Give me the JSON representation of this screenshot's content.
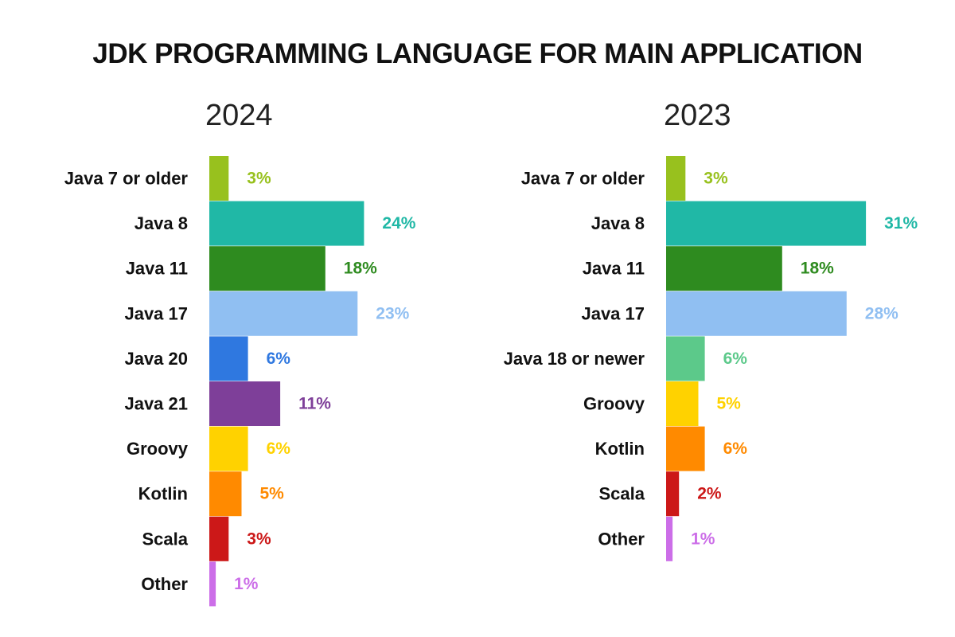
{
  "title": "JDK PROGRAMMING LANGUAGE FOR MAIN APPLICATION",
  "chart_data": [
    {
      "type": "bar",
      "orientation": "horizontal",
      "title": "2024",
      "categories": [
        "Java 7 or older",
        "Java 8",
        "Java 11",
        "Java 17",
        "Java 20",
        "Java 21",
        "Groovy",
        "Kotlin",
        "Scala",
        "Other"
      ],
      "values": [
        3,
        24,
        18,
        23,
        6,
        11,
        6,
        5,
        3,
        1
      ],
      "value_labels": [
        "3%",
        "24%",
        "18%",
        "23%",
        "6%",
        "11%",
        "6%",
        "5%",
        "3%",
        "1%"
      ],
      "colors": [
        "#98c11e",
        "#20b8a6",
        "#2e8b1f",
        "#90bff2",
        "#2f78e0",
        "#7e3f99",
        "#ffd200",
        "#ff8a00",
        "#cc1818",
        "#cc6ee8"
      ],
      "xlabel": "",
      "ylabel": "",
      "legend": "none",
      "grid": false
    },
    {
      "type": "bar",
      "orientation": "horizontal",
      "title": "2023",
      "categories": [
        "Java 7 or older",
        "Java 8",
        "Java 11",
        "Java 17",
        "Java 18 or newer",
        "Groovy",
        "Kotlin",
        "Scala",
        "Other"
      ],
      "values": [
        3,
        31,
        18,
        28,
        6,
        5,
        6,
        2,
        1
      ],
      "value_labels": [
        "3%",
        "31%",
        "18%",
        "28%",
        "6%",
        "5%",
        "6%",
        "2%",
        "1%"
      ],
      "colors": [
        "#98c11e",
        "#20b8a6",
        "#2e8b1f",
        "#90bff2",
        "#5cc98a",
        "#ffd200",
        "#ff8a00",
        "#cc1818",
        "#cc6ee8"
      ],
      "xlabel": "",
      "ylabel": "",
      "legend": "none",
      "grid": false
    }
  ]
}
